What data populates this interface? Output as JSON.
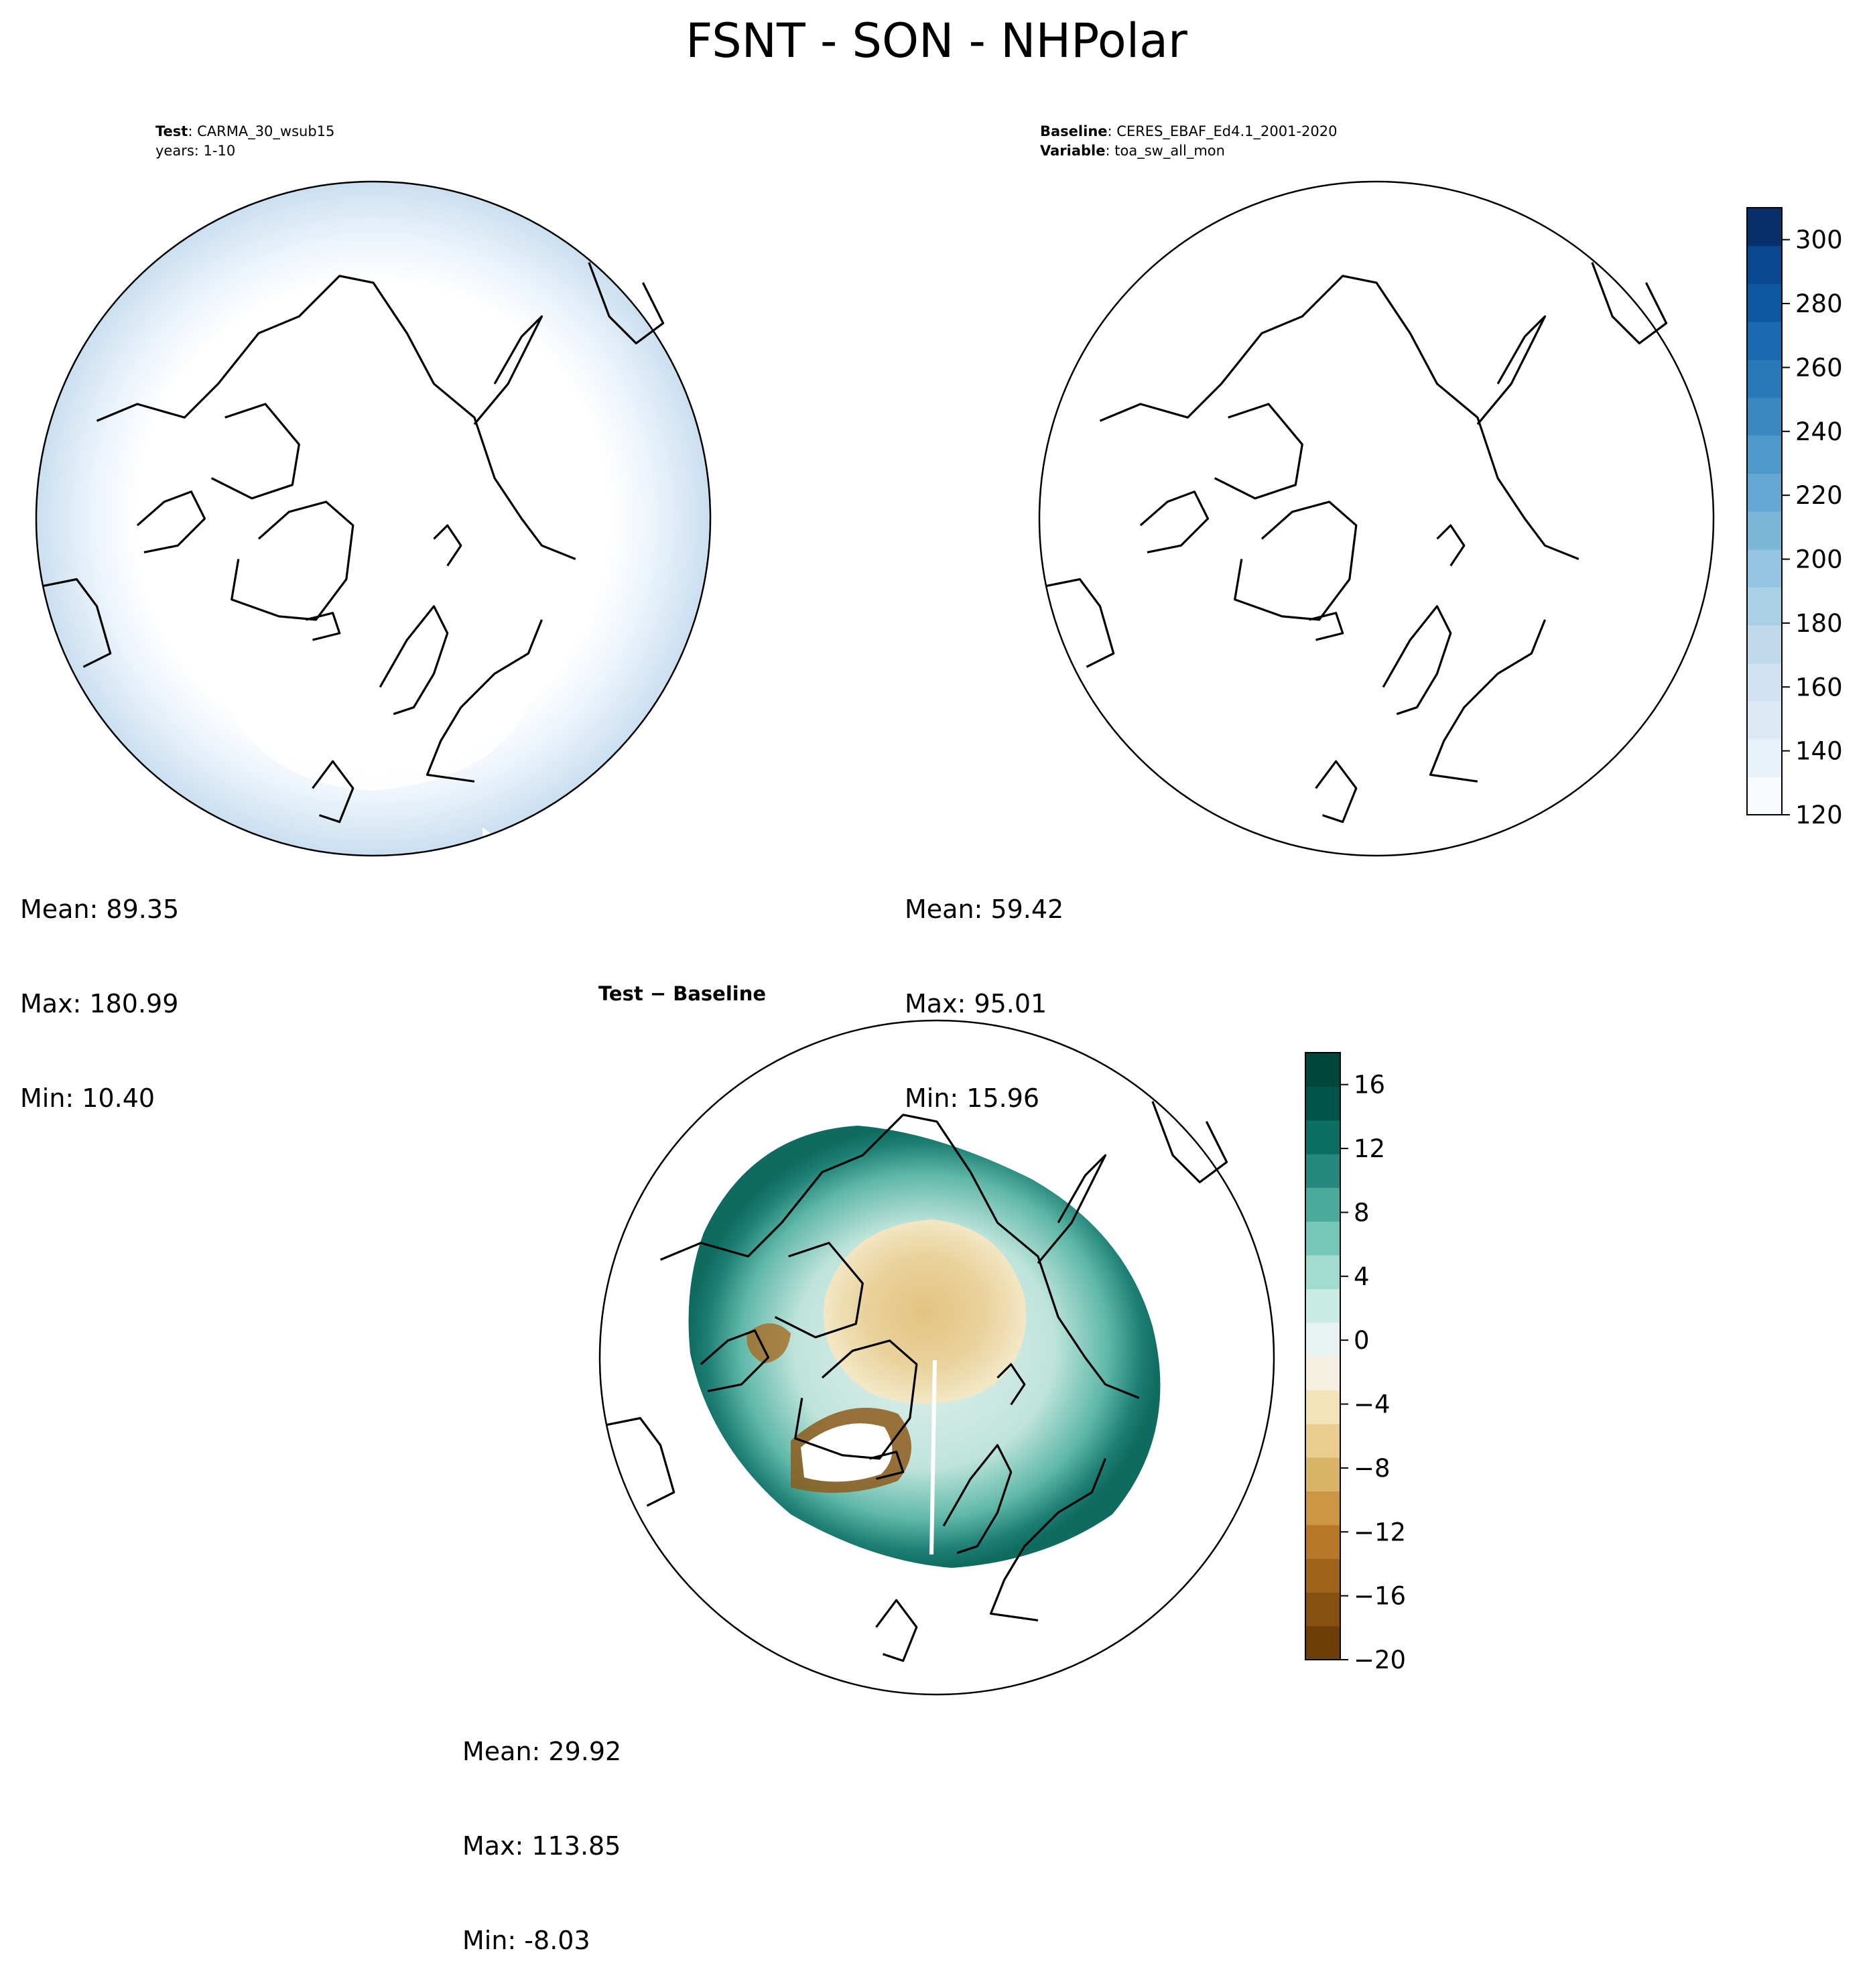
{
  "figure": {
    "title": "FSNT - SON - NHPolar"
  },
  "panels": {
    "test": {
      "label_bold": "Test",
      "label_value": "CARMA_30_wsub15",
      "line2": "years: 1-10",
      "stats": {
        "mean": "Mean: 89.35",
        "max": "Max: 180.99",
        "min": "Min: 10.40"
      }
    },
    "baseline": {
      "label_bold": "Baseline",
      "label_value": "CERES_EBAF_Ed4.1_2001-2020",
      "var_bold": "Variable",
      "var_value": "toa_sw_all_mon",
      "stats": {
        "mean": "Mean: 59.42",
        "max": "Max: 95.01",
        "min": "Min: 15.96"
      }
    },
    "diff": {
      "title": "Test − Baseline",
      "stats": {
        "mean": "Mean: 29.92",
        "max": "Max: 113.85",
        "min": "Min: -8.03"
      }
    }
  },
  "chart_data": [
    {
      "type": "heatmap",
      "name": "test",
      "projection": "north-polar-stereographic",
      "colormap": "Blues",
      "levels_range": [
        120,
        310
      ],
      "stats": {
        "mean": 89.35,
        "max": 180.99,
        "min": 10.4
      }
    },
    {
      "type": "heatmap",
      "name": "baseline",
      "projection": "north-polar-stereographic",
      "colormap": "Blues",
      "levels_range": [
        120,
        310
      ],
      "stats": {
        "mean": 59.42,
        "max": 95.01,
        "min": 15.96
      }
    },
    {
      "type": "colorbar",
      "name": "shared-colorbar",
      "colormap": "Blues",
      "range": [
        120,
        310
      ],
      "ticks": [
        120,
        140,
        160,
        180,
        200,
        220,
        240,
        260,
        280,
        300
      ],
      "tick_labels": [
        "120",
        "140",
        "160",
        "180",
        "200",
        "220",
        "240",
        "260",
        "280",
        "300"
      ],
      "colors": [
        "#f7fbff",
        "#e8f1fa",
        "#dceaf6",
        "#cfe1f2",
        "#c0d9ed",
        "#abcfe5",
        "#94c4df",
        "#7cb7da",
        "#63a8d3",
        "#4d99ca",
        "#3a89c1",
        "#2979b9",
        "#1b69af",
        "#0d59a1",
        "#08488e",
        "#08306b"
      ]
    },
    {
      "type": "heatmap",
      "name": "difference",
      "projection": "north-polar-stereographic",
      "colormap": "BrBG",
      "levels_range": [
        -20,
        18
      ],
      "stats": {
        "mean": 29.92,
        "max": 113.85,
        "min": -8.03
      }
    },
    {
      "type": "colorbar",
      "name": "difference-colorbar",
      "colormap": "BrBG",
      "range": [
        -20,
        18
      ],
      "ticks": [
        -20,
        -16,
        -12,
        -8,
        -4,
        0,
        4,
        8,
        12,
        16
      ],
      "tick_labels": [
        "−20",
        "−16",
        "−12",
        "−8",
        "−4",
        "0",
        "4",
        "8",
        "12",
        "16"
      ],
      "colors": [
        "#6e3e08",
        "#865010",
        "#a0631a",
        "#b8782a",
        "#cc9745",
        "#dab466",
        "#e8cd8f",
        "#f2e3b8",
        "#f5efe0",
        "#e8f3f1",
        "#c9ebe4",
        "#a2dccf",
        "#75c7b8",
        "#4aaa9c",
        "#26887f",
        "#0c6d62",
        "#015449",
        "#00463b"
      ]
    }
  ]
}
